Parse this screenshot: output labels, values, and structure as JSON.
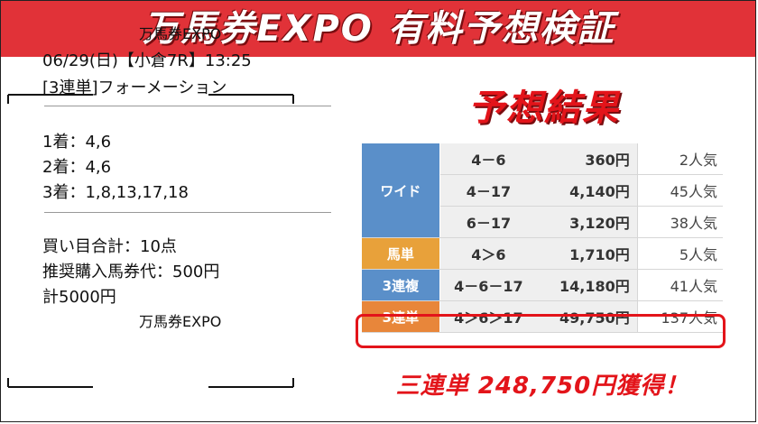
{
  "header": {
    "title": "万馬券EXPO 有料予想検証"
  },
  "prediction": {
    "frame_top": "万馬券EXPO",
    "date_line": "06/29(日)【小倉7R】13:25",
    "bet_type": "[3連単]フォーメーション",
    "first": "1着：4,6",
    "second": "2着：4,6",
    "third": "3着：1,8,13,17,18",
    "points": "買い目合計：10点",
    "stake": "推奨購入馬券代：500円",
    "total": "計5000円",
    "frame_bottom": "万馬券EXPO"
  },
  "results": {
    "title": "予想結果",
    "category_colors": {
      "wide": "#5a8fc9",
      "umatan": "#e8a13a",
      "sanrenpuku": "#5a8fc9",
      "sanrentan": "#e8863a"
    },
    "wide_label": "ワイド",
    "rows": [
      {
        "combo": "4－6",
        "payout": "360円",
        "popularity": "2人気"
      },
      {
        "combo": "4－17",
        "payout": "4,140円",
        "popularity": "45人気"
      },
      {
        "combo": "6－17",
        "payout": "3,120円",
        "popularity": "38人気"
      },
      {
        "category": "馬単",
        "combo": "4＞6",
        "payout": "1,710円",
        "popularity": "5人気"
      },
      {
        "category": "3連複",
        "combo": "4－6－17",
        "payout": "14,180円",
        "popularity": "41人気"
      },
      {
        "category": "3連単",
        "combo": "4＞6＞17",
        "payout": "49,750円",
        "popularity": "137人気"
      }
    ],
    "gain": "三連単 248,750円獲得！"
  }
}
